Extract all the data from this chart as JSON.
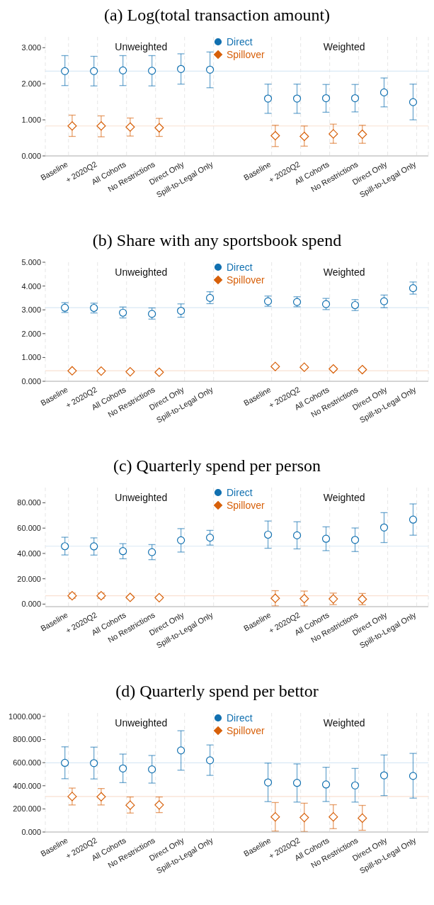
{
  "chart_data": [
    {
      "type": "scatter",
      "title": "(a) Log(total transaction amount)",
      "categories": [
        "Baseline",
        "+ 2020Q2",
        "All Cohorts",
        "No Restrictions",
        "Direct Only",
        "Spill-to-Legal Only",
        null,
        "Baseline",
        "+ 2020Q2",
        "All Cohorts",
        "No Restrictions",
        "Direct Only",
        "Spill-to-Legal Only"
      ],
      "series": [
        {
          "name": "Direct",
          "color": "#1170b0",
          "marker": "circle",
          "values": [
            2.35,
            2.35,
            2.37,
            2.36,
            2.41,
            2.39,
            null,
            1.59,
            1.59,
            1.6,
            1.6,
            1.76,
            1.49
          ],
          "errors": [
            [
              1.95,
              2.78
            ],
            [
              1.94,
              2.76
            ],
            [
              1.95,
              2.78
            ],
            [
              1.94,
              2.78
            ],
            [
              1.99,
              2.83
            ],
            [
              1.89,
              2.88
            ],
            null,
            [
              1.18,
              1.99
            ],
            [
              1.18,
              1.99
            ],
            [
              1.21,
              1.98
            ],
            [
              1.22,
              1.98
            ],
            [
              1.36,
              2.16
            ],
            [
              1.0,
              1.99
            ]
          ]
        },
        {
          "name": "Spillover",
          "color": "#d7600a",
          "marker": "diamond",
          "values": [
            0.83,
            0.83,
            0.8,
            0.78,
            null,
            null,
            null,
            0.56,
            0.54,
            0.61,
            0.6,
            null,
            null
          ],
          "errors": [
            [
              0.54,
              1.13
            ],
            [
              0.53,
              1.11
            ],
            [
              0.55,
              1.05
            ],
            [
              0.54,
              1.04
            ],
            null,
            null,
            null,
            [
              0.26,
              0.85
            ],
            [
              0.27,
              0.83
            ],
            [
              0.35,
              0.88
            ],
            [
              0.35,
              0.85
            ],
            null,
            null
          ]
        }
      ],
      "ylim": [
        0,
        3.3
      ],
      "yticks": [
        {
          "value": 0,
          "label": "0.000"
        },
        {
          "value": 1,
          "label": "1.000"
        },
        {
          "value": 2,
          "label": "2.000"
        },
        {
          "value": 3,
          "label": "3.000"
        }
      ],
      "grid": "x",
      "legend": "top",
      "annotations": [
        "Unweighted",
        "Weighted"
      ],
      "ref_lines": [
        {
          "axis": "y",
          "value": 2.35,
          "color": "#d9e9f5"
        },
        {
          "axis": "y",
          "value": 0.83,
          "color": "#f9e0d2"
        }
      ]
    },
    {
      "type": "scatter",
      "title": "(b) Share with any sportsbook spend",
      "categories": [
        "Baseline",
        "+ 2020Q2",
        "All Cohorts",
        "No Restrictions",
        "Direct Only",
        "Spill-to-Legal Only",
        null,
        "Baseline",
        "+ 2020Q2",
        "All Cohorts",
        "No Restrictions",
        "Direct Only",
        "Spill-to-Legal Only"
      ],
      "series": [
        {
          "name": "Direct",
          "color": "#1170b0",
          "marker": "circle",
          "values": [
            3.09,
            3.08,
            2.88,
            2.83,
            2.96,
            3.5,
            null,
            3.36,
            3.33,
            3.24,
            3.2,
            3.36,
            3.91
          ],
          "errors": [
            [
              2.89,
              3.3
            ],
            [
              2.87,
              3.28
            ],
            [
              2.66,
              3.12
            ],
            [
              2.61,
              3.08
            ],
            [
              2.69,
              3.25
            ],
            [
              3.26,
              3.76
            ],
            null,
            [
              3.15,
              3.58
            ],
            [
              3.13,
              3.55
            ],
            [
              3.01,
              3.48
            ],
            [
              2.97,
              3.43
            ],
            [
              3.09,
              3.62
            ],
            [
              3.66,
              4.17
            ]
          ]
        },
        {
          "name": "Spillover",
          "color": "#d7600a",
          "marker": "diamond",
          "values": [
            0.44,
            0.43,
            0.4,
            0.38,
            null,
            null,
            null,
            0.62,
            0.59,
            0.52,
            0.49,
            null,
            null
          ],
          "errors": [
            [
              0.41,
              0.47
            ],
            [
              0.39,
              0.47
            ],
            [
              0.36,
              0.44
            ],
            [
              0.34,
              0.42
            ],
            null,
            null,
            null,
            [
              0.56,
              0.67
            ],
            [
              0.53,
              0.64
            ],
            [
              0.47,
              0.56
            ],
            [
              0.44,
              0.53
            ],
            null,
            null
          ]
        }
      ],
      "ylim": [
        0,
        5
      ],
      "yticks": [
        {
          "value": 0,
          "label": "0.000"
        },
        {
          "value": 1,
          "label": "1.000"
        },
        {
          "value": 2,
          "label": "2.000"
        },
        {
          "value": 3,
          "label": "3.000"
        },
        {
          "value": 4,
          "label": "4.000"
        },
        {
          "value": 5,
          "label": "5.000"
        }
      ],
      "grid": "x",
      "legend": "top",
      "annotations": [
        "Unweighted",
        "Weighted"
      ],
      "ref_lines": [
        {
          "axis": "y",
          "value": 3.09,
          "color": "#d9e9f5"
        },
        {
          "axis": "y",
          "value": 0.44,
          "color": "#f9e0d2"
        }
      ]
    },
    {
      "type": "scatter",
      "title": "(c) Quarterly spend per person",
      "categories": [
        "Baseline",
        "+ 2020Q2",
        "All Cohorts",
        "No Restrictions",
        "Direct Only",
        "Spill-to-Legal Only",
        null,
        "Baseline",
        "+ 2020Q2",
        "All Cohorts",
        "No Restrictions",
        "Direct Only",
        "Spill-to-Legal Only"
      ],
      "series": [
        {
          "name": "Direct",
          "color": "#1170b0",
          "marker": "circle",
          "values": [
            45.7,
            45.6,
            41.8,
            41.0,
            50.4,
            52.5,
            null,
            54.8,
            54.3,
            51.6,
            50.7,
            60.5,
            66.7
          ],
          "errors": [
            [
              38.8,
              52.8
            ],
            [
              38.7,
              52.3
            ],
            [
              35.8,
              47.7
            ],
            [
              35.1,
              47.0
            ],
            [
              41.1,
              59.6
            ],
            [
              46.6,
              58.2
            ],
            null,
            [
              44.1,
              65.6
            ],
            [
              43.6,
              65.0
            ],
            [
              42.2,
              61.0
            ],
            [
              41.5,
              60.1
            ],
            [
              48.6,
              72.2
            ],
            [
              54.4,
              79.1
            ]
          ]
        },
        {
          "name": "Spillover",
          "color": "#d7600a",
          "marker": "diamond",
          "values": [
            6.6,
            6.6,
            5.3,
            5.1,
            null,
            null,
            null,
            4.6,
            4.3,
            4.1,
            3.9,
            null,
            null
          ],
          "errors": [
            [
              4.6,
              8.7
            ],
            [
              4.6,
              8.7
            ],
            [
              4.4,
              6.2
            ],
            [
              4.2,
              6.0
            ],
            null,
            null,
            null,
            [
              -1.4,
              10.6
            ],
            [
              -1.4,
              10.3
            ],
            [
              -0.4,
              8.7
            ],
            [
              -0.5,
              8.4
            ],
            null,
            null
          ]
        }
      ],
      "ylim": [
        -2,
        92
      ],
      "yticks": [
        {
          "value": 0,
          "label": "0.000"
        },
        {
          "value": 20,
          "label": "20.000"
        },
        {
          "value": 40,
          "label": "40.000"
        },
        {
          "value": 60,
          "label": "60.000"
        },
        {
          "value": 80,
          "label": "80.000"
        }
      ],
      "grid": "x",
      "legend": "top",
      "annotations": [
        "Unweighted",
        "Weighted"
      ],
      "ref_lines": [
        {
          "axis": "y",
          "value": 45.7,
          "color": "#d9e9f5"
        },
        {
          "axis": "y",
          "value": 6.6,
          "color": "#f9e0d2"
        }
      ]
    },
    {
      "type": "scatter",
      "title": "(d) Quarterly spend per bettor",
      "categories": [
        "Baseline",
        "+ 2020Q2",
        "All Cohorts",
        "No Restrictions",
        "Direct Only",
        "Spill-to-Legal Only",
        null,
        "Baseline",
        "+ 2020Q2",
        "All Cohorts",
        "No Restrictions",
        "Direct Only",
        "Spill-to-Legal Only"
      ],
      "series": [
        {
          "name": "Direct",
          "color": "#1170b0",
          "marker": "circle",
          "values": [
            598,
            596,
            550,
            542,
            706,
            620,
            null,
            429,
            425,
            411,
            403,
            490,
            485
          ],
          "errors": [
            [
              461,
              737
            ],
            [
              459,
              734
            ],
            [
              427,
              674
            ],
            [
              423,
              662
            ],
            [
              535,
              876
            ],
            [
              490,
              753
            ],
            null,
            [
              263,
              596
            ],
            [
              259,
              589
            ],
            [
              264,
              560
            ],
            [
              259,
              550
            ],
            [
              315,
              666
            ],
            [
              293,
              680
            ]
          ]
        },
        {
          "name": "Spillover",
          "color": "#d7600a",
          "marker": "diamond",
          "values": [
            307,
            305,
            232,
            234,
            null,
            null,
            null,
            131,
            125,
            131,
            120,
            null,
            null
          ],
          "errors": [
            [
              234,
              380
            ],
            [
              234,
              376
            ],
            [
              164,
              303
            ],
            [
              168,
              303
            ],
            null,
            null,
            null,
            [
              8,
              255
            ],
            [
              4,
              249
            ],
            [
              29,
              236
            ],
            [
              15,
              230
            ],
            null,
            null
          ]
        }
      ],
      "ylim": [
        0,
        1030
      ],
      "yticks": [
        {
          "value": 0,
          "label": "0.000"
        },
        {
          "value": 200,
          "label": "200.000"
        },
        {
          "value": 400,
          "label": "400.000"
        },
        {
          "value": 600,
          "label": "600.000"
        },
        {
          "value": 800,
          "label": "800.000"
        },
        {
          "value": 1000,
          "label": "1000.000"
        }
      ],
      "grid": "x",
      "legend": "top",
      "annotations": [
        "Unweighted",
        "Weighted"
      ],
      "ref_lines": [
        {
          "axis": "y",
          "value": 598,
          "color": "#d9e9f5"
        },
        {
          "axis": "y",
          "value": 307,
          "color": "#f9e0d2"
        }
      ]
    }
  ]
}
